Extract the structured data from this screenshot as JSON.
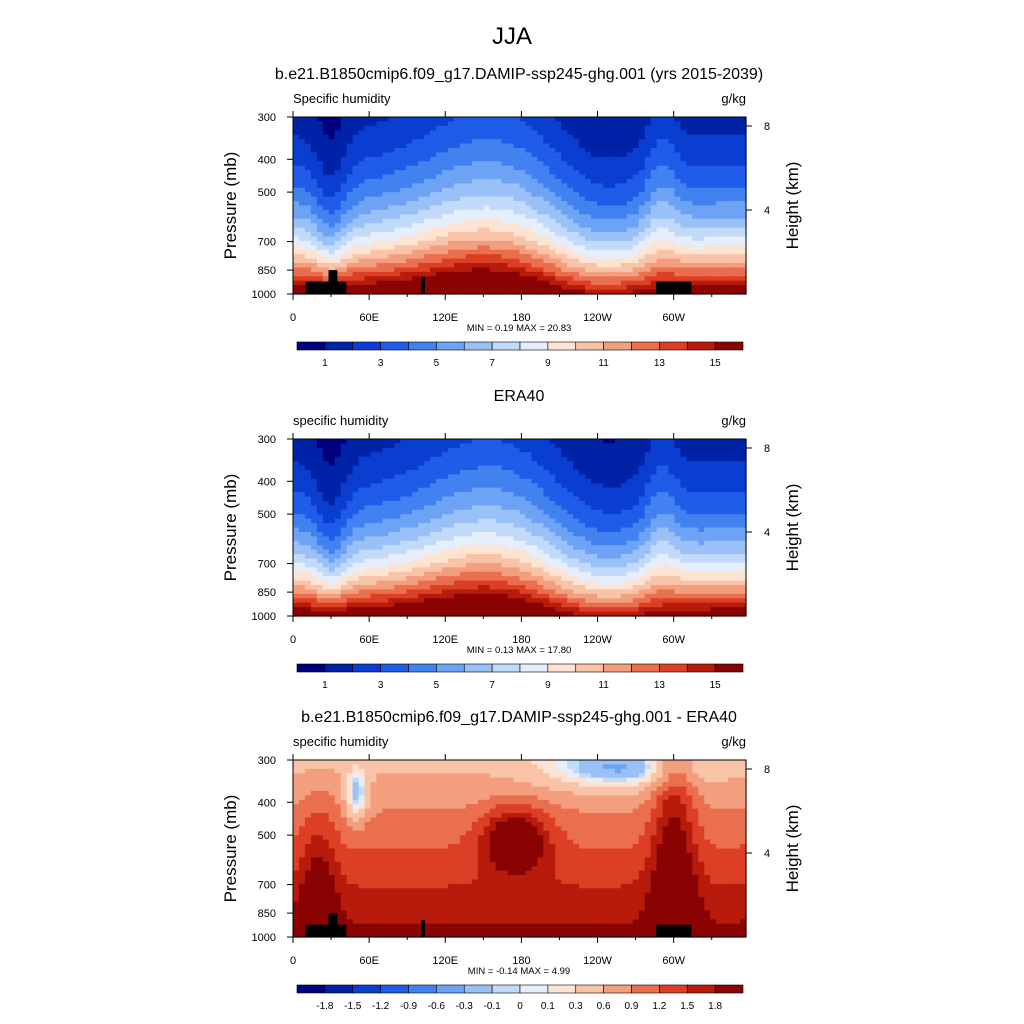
{
  "figure_title": "JJA",
  "panels": [
    {
      "title": "b.e21.B1850cmip6.f09_g17.DAMIP-ssp245-ghg.001 (yrs 2015-2039)",
      "left_label": "Specific humidity",
      "right_label": "g/kg",
      "min_max_text": "MIN =   0.19  MAX =  20.83"
    },
    {
      "title": "ERA40",
      "left_label": "specific humidity",
      "right_label": "g/kg",
      "min_max_text": "MIN =   0.13  MAX =  17.80"
    },
    {
      "title": "b.e21.B1850cmip6.f09_g17.DAMIP-ssp245-ghg.001 - ERA40",
      "left_label": "specific humidity",
      "right_label": "g/kg",
      "min_max_text": "MIN =  -0.14  MAX =   4.99"
    }
  ],
  "y_axis_label": "Pressure (mb)",
  "y2_axis_label": "Height (km)",
  "colors": {
    "abs_palette": [
      "#00007f",
      "#0022a7",
      "#0a3ed0",
      "#1f5ce8",
      "#4282f0",
      "#6da3f5",
      "#9ac0f8",
      "#c2daf9",
      "#e6eefc",
      "#fde4d2",
      "#f8c3a6",
      "#f39e7e",
      "#ea6f4e",
      "#dc3f25",
      "#b71b0b",
      "#8a0303"
    ],
    "diff_palette": [
      "#00007f",
      "#0022a7",
      "#0a3ed0",
      "#1f5ce8",
      "#4282f0",
      "#6da3f5",
      "#9ac0f8",
      "#c2daf9",
      "#e6eefc",
      "#fde4d2",
      "#f8c3a6",
      "#f39e7e",
      "#ea6f4e",
      "#dc3f25",
      "#b71b0b",
      "#8a0303"
    ],
    "topography": "#000000"
  },
  "chart_data": [
    {
      "type": "heatmap",
      "title": "b.e21.B1850cmip6.f09_g17.DAMIP-ssp245-ghg.001 (yrs 2015-2039)",
      "field": "Specific humidity",
      "units": "g/kg",
      "xlabel": "",
      "ylabel": "Pressure (mb)",
      "y2label": "Height (km)",
      "x_ticks": [
        "0",
        "60E",
        "120E",
        "180",
        "120W",
        "60W"
      ],
      "x_tick_values": [
        0,
        60,
        120,
        180,
        240,
        300
      ],
      "xlim": [
        0,
        357
      ],
      "y_ticks": [
        300,
        400,
        500,
        700,
        850,
        1000
      ],
      "ylim": [
        1000,
        300
      ],
      "y2_ticks": [
        4,
        8
      ],
      "contour_levels": [
        1,
        2,
        3,
        4,
        5,
        6,
        7,
        8,
        9,
        10,
        11,
        12,
        13,
        14,
        15
      ],
      "colorbar_labels": [
        "1",
        "3",
        "5",
        "7",
        "9",
        "11",
        "13",
        "15"
      ],
      "min": 0.19,
      "max": 20.83,
      "topography_mask": true
    },
    {
      "type": "heatmap",
      "title": "ERA40",
      "field": "specific humidity",
      "units": "g/kg",
      "xlabel": "",
      "ylabel": "Pressure (mb)",
      "y2label": "Height (km)",
      "x_ticks": [
        "0",
        "60E",
        "120E",
        "180",
        "120W",
        "60W"
      ],
      "x_tick_values": [
        0,
        60,
        120,
        180,
        240,
        300
      ],
      "xlim": [
        0,
        357
      ],
      "y_ticks": [
        300,
        400,
        500,
        700,
        850,
        1000
      ],
      "ylim": [
        1000,
        300
      ],
      "y2_ticks": [
        4,
        8
      ],
      "contour_levels": [
        1,
        2,
        3,
        4,
        5,
        6,
        7,
        8,
        9,
        10,
        11,
        12,
        13,
        14,
        15
      ],
      "colorbar_labels": [
        "1",
        "3",
        "5",
        "7",
        "9",
        "11",
        "13",
        "15"
      ],
      "min": 0.13,
      "max": 17.8,
      "topography_mask": false
    },
    {
      "type": "heatmap",
      "title": "b.e21.B1850cmip6.f09_g17.DAMIP-ssp245-ghg.001 - ERA40",
      "field": "specific humidity",
      "units": "g/kg",
      "xlabel": "",
      "ylabel": "Pressure (mb)",
      "y2label": "Height (km)",
      "x_ticks": [
        "0",
        "60E",
        "120E",
        "180",
        "120W",
        "60W"
      ],
      "x_tick_values": [
        0,
        60,
        120,
        180,
        240,
        300
      ],
      "xlim": [
        0,
        357
      ],
      "y_ticks": [
        300,
        400,
        500,
        700,
        850,
        1000
      ],
      "ylim": [
        1000,
        300
      ],
      "y2_ticks": [
        4,
        8
      ],
      "contour_levels": [
        -1.8,
        -1.5,
        -1.2,
        -0.9,
        -0.6,
        -0.3,
        -0.1,
        0,
        0.1,
        0.3,
        0.6,
        0.9,
        1.2,
        1.5,
        1.8
      ],
      "colorbar_labels": [
        "-1.8",
        "-1.5",
        "-1.2",
        "-0.9",
        "-0.6",
        "-0.3",
        "-0.1",
        "0",
        "0.1",
        "0.3",
        "0.6",
        "0.9",
        "1.2",
        "1.5",
        "1.8"
      ],
      "min": -0.14,
      "max": 4.99,
      "topography_mask": true
    }
  ]
}
